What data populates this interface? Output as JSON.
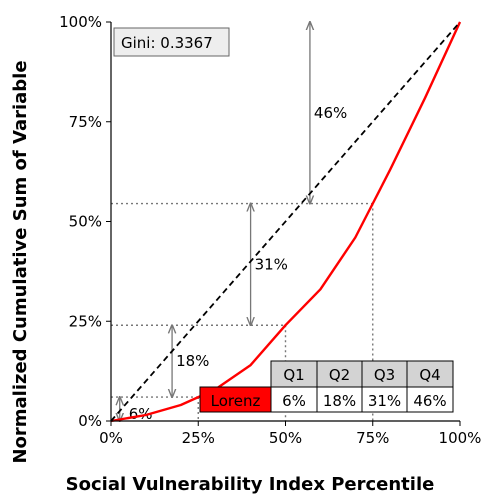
{
  "chart_data": {
    "type": "line",
    "title": "",
    "xlabel": "Social Vulnerability Index Percentile",
    "ylabel": "Normalized Cumulative Sum of Variable",
    "xlim": [
      0,
      100
    ],
    "ylim": [
      0,
      100
    ],
    "x_ticks": [
      0,
      25,
      50,
      75,
      100
    ],
    "y_ticks": [
      0,
      25,
      50,
      75,
      100
    ],
    "x_tick_labels": [
      "0%",
      "25%",
      "50%",
      "75%",
      "100%"
    ],
    "y_tick_labels": [
      "0%",
      "25%",
      "50%",
      "75%",
      "100%"
    ],
    "grid": false,
    "gini_label": "Gini: 0.3367",
    "series": [
      {
        "name": "Lorenz",
        "color": "#ff0000",
        "style": "solid",
        "x": [
          0,
          10,
          20,
          25,
          30,
          40,
          50,
          60,
          70,
          75,
          80,
          90,
          100
        ],
        "y": [
          0,
          1.5,
          4.0,
          6.0,
          8.0,
          14.0,
          24.0,
          33.0,
          46.0,
          54.5,
          63.0,
          81.0,
          100
        ]
      },
      {
        "name": "",
        "color": "#000000",
        "style": "dashed",
        "x": [
          0,
          100
        ],
        "y": [
          0,
          100
        ]
      }
    ],
    "quartile_markers": [
      {
        "x": 25,
        "y": 6.0,
        "gap_label": "6%",
        "arrow_x": 2.5,
        "arrow_from": 0,
        "arrow_to": 6.0
      },
      {
        "x": 50,
        "y": 24.0,
        "gap_label": "18%",
        "arrow_x": 17.5,
        "arrow_from": 6.0,
        "arrow_to": 24.0
      },
      {
        "x": 75,
        "y": 54.5,
        "gap_label": "31%",
        "arrow_x": 40,
        "arrow_from": 24.0,
        "arrow_to": 54.5
      },
      {
        "x": 100,
        "y": 100,
        "gap_label": "46%",
        "arrow_x": 57,
        "arrow_from": 54.5,
        "arrow_to": 100
      }
    ],
    "table": {
      "columns": [
        "Q1",
        "Q2",
        "Q3",
        "Q4"
      ],
      "row_label": "Lorenz",
      "row_values": [
        "6%",
        "18%",
        "31%",
        "46%"
      ],
      "header_color": "#d3d3d3",
      "row_label_color": "#ff0000"
    }
  }
}
